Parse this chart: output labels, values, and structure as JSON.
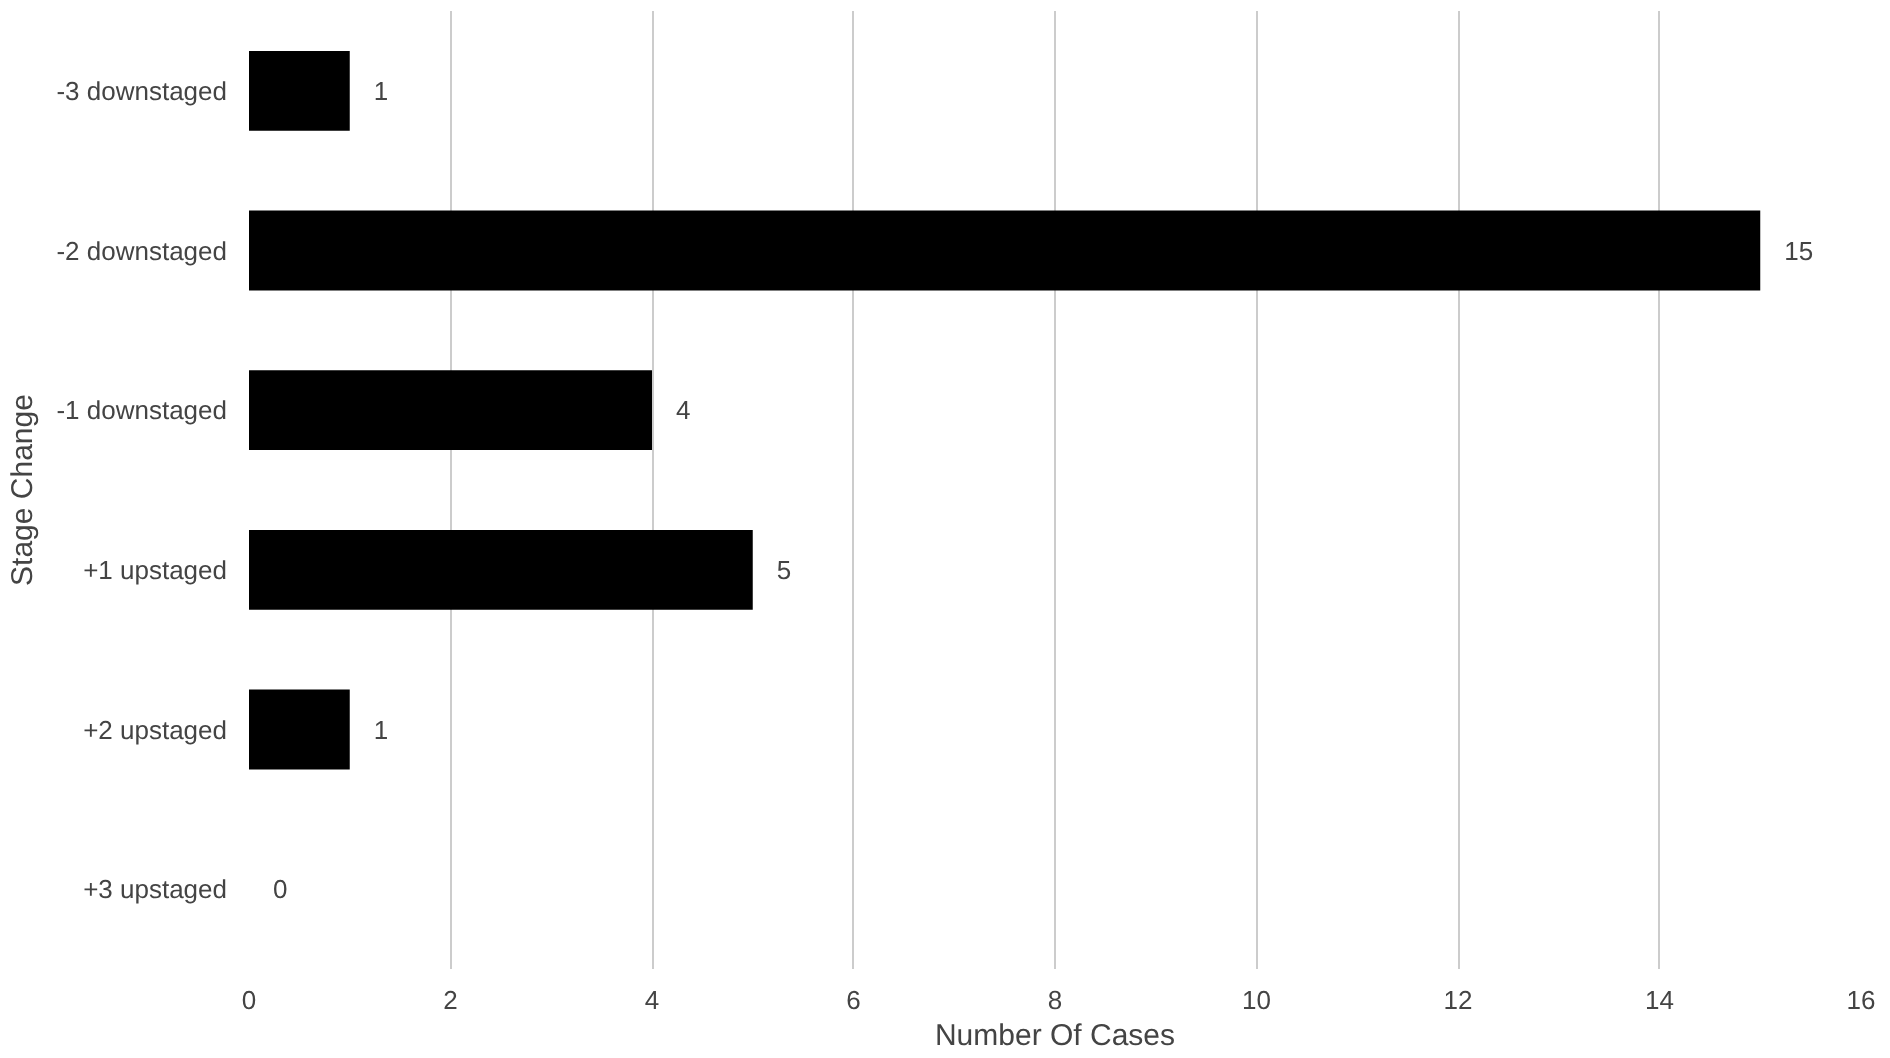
{
  "chart_data": {
    "type": "bar",
    "orientation": "horizontal",
    "xlabel": "Number Of Cases",
    "ylabel": "Stage Change",
    "categories": [
      "-3 downstaged",
      "-2 downstaged",
      "-1 downstaged",
      "+1 upstaged",
      "+2 upstaged",
      "+3 upstaged"
    ],
    "values": [
      1,
      15,
      4,
      5,
      1,
      0
    ],
    "color": "#000000",
    "xlim": [
      0,
      16
    ],
    "xticks": [
      0,
      2,
      4,
      6,
      8,
      10,
      12,
      14,
      16
    ],
    "grid": "x",
    "data_labels": true
  }
}
